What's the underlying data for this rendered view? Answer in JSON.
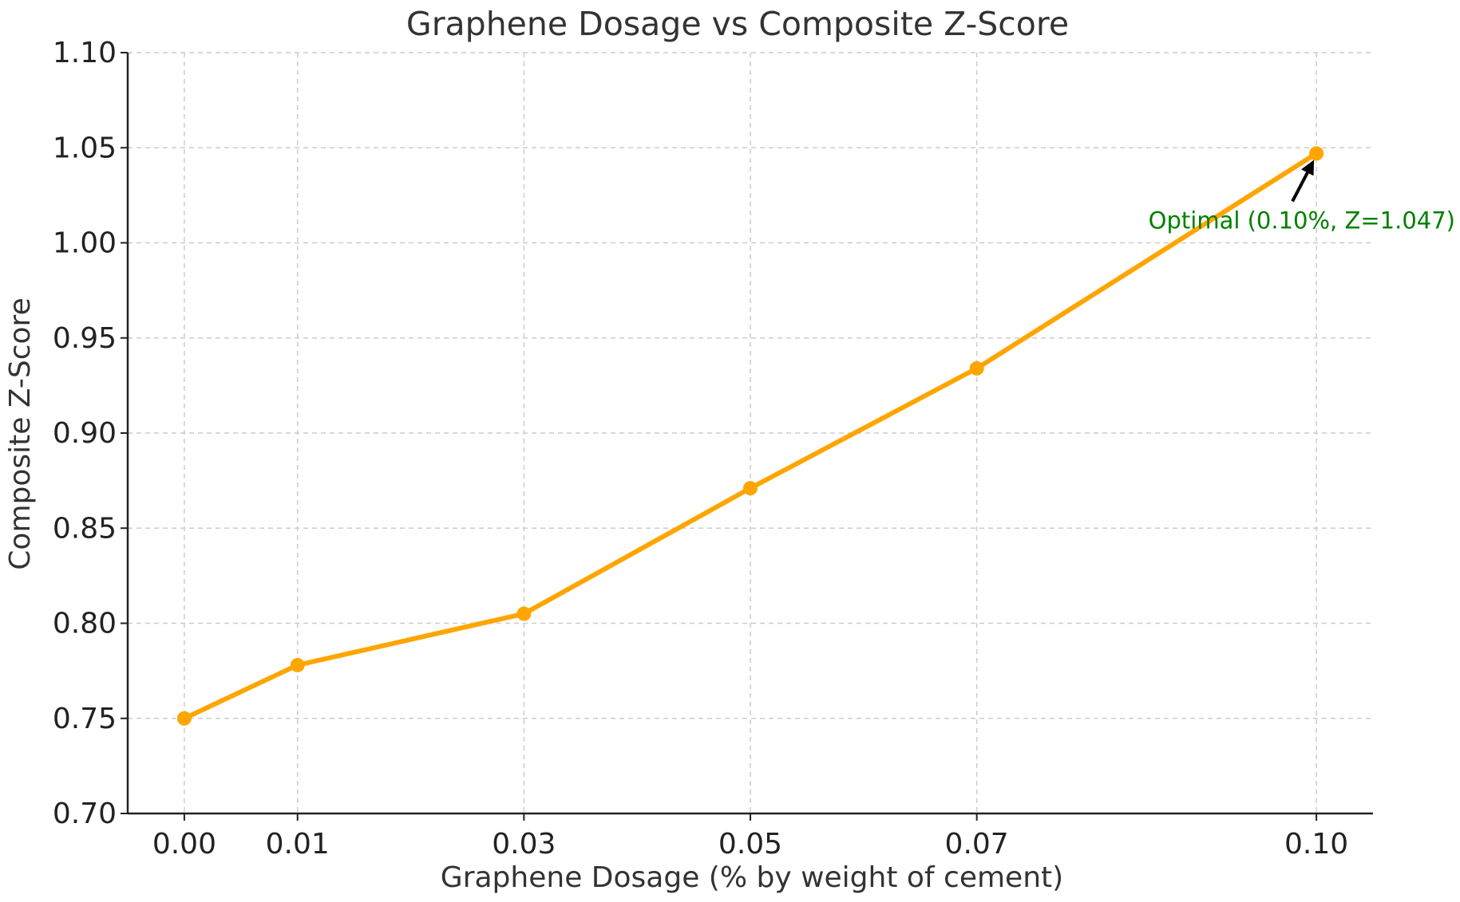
{
  "chart_data": {
    "type": "line",
    "title": "Graphene Dosage vs Composite Z-Score",
    "xlabel": "Graphene Dosage (% by weight of cement)",
    "ylabel": "Composite Z-Score",
    "x": [
      0.0,
      0.01,
      0.03,
      0.05,
      0.07,
      0.1
    ],
    "x_tick_labels": [
      "0.00",
      "0.01",
      "0.03",
      "0.05",
      "0.07",
      "0.10"
    ],
    "series": [
      {
        "values": [
          0.75,
          0.778,
          0.805,
          0.871,
          0.934,
          1.047
        ],
        "color": "#FFA500"
      }
    ],
    "ylim": [
      0.7,
      1.1
    ],
    "y_ticks": [
      0.7,
      0.75,
      0.8,
      0.85,
      0.9,
      0.95,
      1.0,
      1.05,
      1.1
    ],
    "y_tick_labels": [
      "0.70",
      "0.75",
      "0.80",
      "0.85",
      "0.90",
      "0.95",
      "1.00",
      "1.05",
      "1.10"
    ],
    "grid": true,
    "annotation": {
      "text": "Optimal (0.10%, Z=1.047)",
      "x": 0.1,
      "y": 1.047,
      "color": "#008000"
    }
  }
}
